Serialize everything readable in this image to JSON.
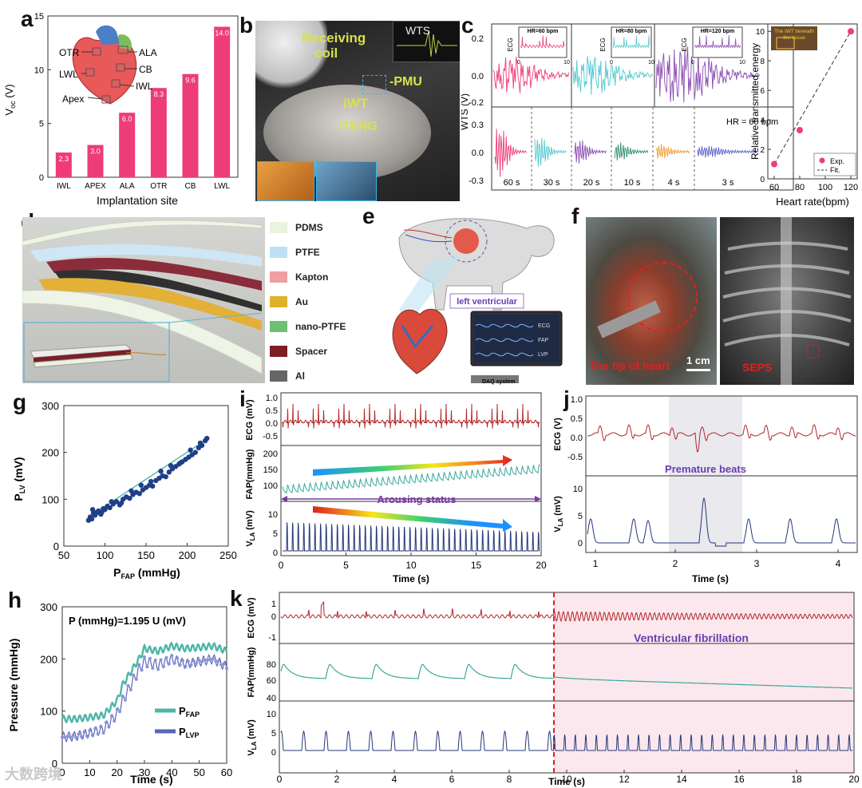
{
  "labels": {
    "a": "a",
    "b": "b",
    "c": "c",
    "d": "d",
    "e": "e",
    "f": "f",
    "g": "g",
    "h": "h",
    "i": "i",
    "j": "j",
    "k": "k"
  },
  "colors": {
    "pink": "#ee3c78",
    "cyan": "#4ec8d1",
    "purple": "#8a4bb0",
    "green": "#2b8c6e",
    "orange": "#f09a2e",
    "blue": "#5a5fc8",
    "red": "#b32525",
    "teal": "#3aa79a",
    "navy": "#24377a",
    "sepsRed": "#e02020",
    "photoText": "#d8e24a"
  },
  "panel_a": {
    "ylabel_main": "V",
    "ylabel_sub": "oc",
    "ylabel_unit": " (V)",
    "xlabel": "Implantation site",
    "heart_labels": [
      "OTR",
      "ALA",
      "CB",
      "LWL",
      "IWL",
      "Apex"
    ],
    "chart_data": {
      "type": "bar",
      "categories": [
        "IWL",
        "APEX",
        "ALA",
        "OTR",
        "CB",
        "LWL"
      ],
      "values": [
        2.3,
        3.0,
        6.0,
        8.3,
        9.6,
        14.0
      ],
      "value_labels": [
        "2.3",
        "3.0",
        "6.0",
        "8.3",
        "9.6",
        "14.0"
      ],
      "ylim": [
        0,
        15
      ],
      "yticks": [
        "0",
        "5",
        "10",
        "15"
      ]
    }
  },
  "panel_b": {
    "receiving_coil_1": "Receiving",
    "receiving_coil_2": "coil",
    "wts": "WTS",
    "pmu": "PMU",
    "iwt": "iWT",
    "iteng": "iTENG"
  },
  "panel_c": {
    "ylabel": "WTS (V)",
    "top_yticks": [
      "0.2",
      "0.0",
      "-0.2"
    ],
    "bottom_yticks": [
      "0.3",
      "0.0",
      "-0.3"
    ],
    "insets": [
      {
        "title": "HR=60 bpm",
        "ylabel": "ECG",
        "x0": "0",
        "x1": "10"
      },
      {
        "title": "HR=80 bpm",
        "ylabel": "ECG",
        "x0": "0",
        "x1": "10"
      },
      {
        "title": "HR=120 bpm",
        "ylabel": "ECG",
        "x0": "0",
        "x1": "10"
      }
    ],
    "hr_note": "HR = 60 bpm",
    "segments": [
      "60 s",
      "30 s",
      "20 s",
      "10 s",
      "4 s",
      "3 s"
    ],
    "right": {
      "ylabel": "Relative transmitted energy",
      "xlabel": "Heart rate(bpm)",
      "inset_title_1": "The iWT beneath",
      "inset_title_2": "the tissue",
      "legend_exp": "Exp.",
      "legend_fit": "Fit.",
      "chart_data": {
        "type": "scatter",
        "x": [
          60,
          80,
          120
        ],
        "y": [
          1.0,
          3.3,
          10.0
        ],
        "xlim": [
          55,
          125
        ],
        "ylim": [
          0,
          10.5
        ],
        "xticks": [
          "60",
          "80",
          "100",
          "120"
        ],
        "yticks": [
          "0",
          "2",
          "4",
          "6",
          "8",
          "10"
        ]
      }
    }
  },
  "panel_d": {
    "legend": [
      {
        "name": "PDMS",
        "color": "#e9f3dd"
      },
      {
        "name": "PTFE",
        "color": "#bfe0f4"
      },
      {
        "name": "Kapton",
        "color": "#ef9ea3"
      },
      {
        "name": "Au",
        "color": "#e0b12a"
      },
      {
        "name": "nano-PTFE",
        "color": "#6fbf73"
      },
      {
        "name": "Spacer",
        "color": "#7d1d24"
      },
      {
        "name": "Al",
        "color": "#666666"
      }
    ]
  },
  "panel_e": {
    "label_lv": "left  ventricular",
    "daq": "DAQ system",
    "screen": [
      "ECG",
      "FAP",
      "LVP"
    ]
  },
  "panel_f": {
    "tip": "The tip of heart",
    "scale": "1 cm",
    "seps": "SEPS"
  },
  "panel_g": {
    "ylabel_main": "P",
    "ylabel_sub": "LV",
    "ylabel_unit": " (mV)",
    "xlabel_main": "P",
    "xlabel_sub": "FAP",
    "xlabel_unit": " (mmHg)",
    "chart_data": {
      "type": "scatter",
      "xlim": [
        50,
        250
      ],
      "ylim": [
        0,
        300
      ],
      "xticks": [
        "50",
        "100",
        "150",
        "200",
        "250"
      ],
      "yticks": [
        "0",
        "100",
        "200",
        "300"
      ],
      "x": [
        80,
        82,
        84,
        86,
        88,
        90,
        92,
        95,
        98,
        100,
        103,
        106,
        110,
        114,
        118,
        122,
        126,
        130,
        134,
        138,
        142,
        146,
        150,
        154,
        158,
        162,
        166,
        170,
        174,
        178,
        182,
        186,
        190,
        194,
        198,
        202,
        206,
        210,
        214,
        218,
        222,
        85,
        96,
        108,
        120,
        132,
        144,
        156,
        168,
        180,
        192,
        204,
        216,
        224
      ],
      "y": [
        55,
        62,
        58,
        70,
        66,
        72,
        75,
        68,
        80,
        78,
        85,
        82,
        90,
        95,
        88,
        100,
        105,
        102,
        110,
        115,
        112,
        120,
        125,
        130,
        128,
        140,
        145,
        150,
        148,
        158,
        165,
        170,
        175,
        180,
        185,
        190,
        195,
        200,
        210,
        215,
        225,
        78,
        72,
        95,
        92,
        118,
        130,
        138,
        160,
        172,
        178,
        205,
        220,
        230
      ]
    }
  },
  "panel_h": {
    "ylabel": "Pressure (mmHg)",
    "xlabel": "Time (s)",
    "equation": "P (mmHg)=1.195 U (mV)",
    "legend": [
      {
        "main": "P",
        "sub": "FAP"
      },
      {
        "main": "P",
        "sub": "LVP"
      }
    ],
    "chart_data": {
      "type": "line",
      "xlim": [
        0,
        60
      ],
      "ylim": [
        0,
        300
      ],
      "xticks": [
        "0",
        "10",
        "20",
        "30",
        "40",
        "50",
        "60"
      ],
      "yticks": [
        "0",
        "100",
        "200",
        "300"
      ],
      "series": [
        {
          "x": [
            0,
            5,
            10,
            15,
            20,
            22,
            25,
            28,
            30,
            35,
            40,
            45,
            50,
            55,
            60
          ],
          "y": [
            85,
            85,
            88,
            92,
            120,
            150,
            175,
            200,
            220,
            215,
            225,
            220,
            222,
            225,
            215
          ]
        },
        {
          "x": [
            0,
            5,
            10,
            15,
            20,
            22,
            25,
            28,
            30,
            35,
            40,
            45,
            50,
            55,
            60
          ],
          "y": [
            50,
            52,
            58,
            65,
            95,
            120,
            150,
            180,
            195,
            188,
            200,
            190,
            195,
            200,
            185
          ]
        }
      ]
    }
  },
  "panel_i": {
    "ecg_label": "ECG (mV)",
    "fap_label": "FAP(mmHg)",
    "vla_label": "V",
    "vla_sub": "LA",
    "vla_unit": " (mV)",
    "arousing": "Arousing status",
    "xlabel": "Time (s)",
    "ecg_ticks": [
      "1.0",
      "0.5",
      "0.0",
      "-0.5"
    ],
    "fap_ticks": [
      "200",
      "150",
      "100"
    ],
    "vla_ticks": [
      "10",
      "5",
      "0"
    ],
    "xticks": [
      "0",
      "5",
      "10",
      "15",
      "20"
    ]
  },
  "panel_j": {
    "ecg_label": "ECG (V)",
    "vla_label": "V",
    "vla_sub": "LA",
    "vla_unit": " (mV)",
    "premature": "Premature beats",
    "xlabel": "Time (s)",
    "ecg_ticks": [
      "1.0",
      "0.5",
      "0.0",
      "-0.5"
    ],
    "vla_ticks": [
      "10",
      "5",
      "0"
    ],
    "xticks": [
      "1",
      "2",
      "3",
      "4"
    ]
  },
  "panel_k": {
    "ecg_label": "ECG (mV)",
    "fap_label": "FAP(mmHg)",
    "vla_label": "V",
    "vla_sub": "LA",
    "vla_unit": " (mV)",
    "vf": "Ventricular fibrillation",
    "xlabel": "Time (s)",
    "ecg_ticks": [
      "1",
      "0",
      "-1"
    ],
    "fap_ticks": [
      "80",
      "60",
      "40"
    ],
    "vla_ticks": [
      "10",
      "5",
      "0"
    ],
    "xticks": [
      "0",
      "2",
      "4",
      "6",
      "8",
      "10",
      "12",
      "14",
      "16",
      "18",
      "20"
    ]
  },
  "watermark": "大数跨境"
}
